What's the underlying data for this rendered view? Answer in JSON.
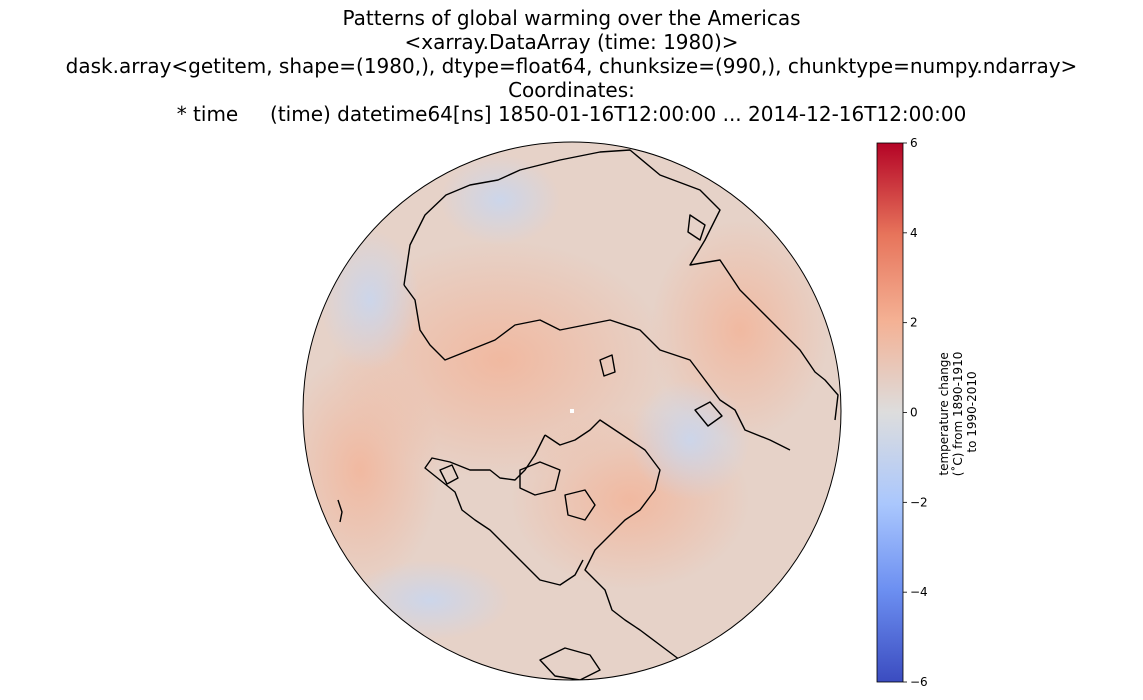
{
  "title": {
    "lines": [
      "Patterns of global warming over the Americas",
      "<xarray.DataArray (time: 1980)>",
      "dask.array<getitem, shape=(1980,), dtype=float64, chunksize=(990,), chunktype=numpy.ndarray>",
      "Coordinates:",
      "* time     (time) datetime64[ns] 1850-01-16T12:00:00 ... 2014-12-16T12:00:00"
    ]
  },
  "colorbar": {
    "colormap": "coolwarm",
    "vmin": -6,
    "vmax": 6,
    "ticks": [
      "6",
      "4",
      "2",
      "0",
      "−2",
      "−4",
      "−6"
    ],
    "label_lines": [
      "temperature change",
      "(˚C) from 1890-1910",
      "to 1990-2010"
    ],
    "low_color": "#3b4cc0",
    "mid_color": "#dddddd",
    "high_color": "#b40426"
  },
  "map": {
    "projection": "orthographic (north polar view)",
    "background_color": "#e4d6cf",
    "dominant_anomaly": "slight warming (approx. 0.5 to 1.5 ˚C) over most regions"
  }
}
